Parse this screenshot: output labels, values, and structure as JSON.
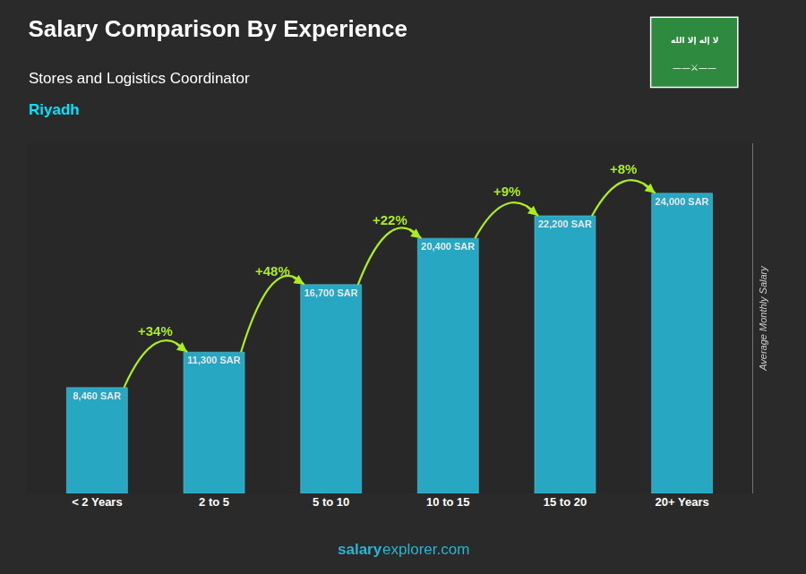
{
  "chart_data": {
    "type": "bar",
    "title": "Salary Comparison By Experience",
    "subtitle": "Stores and Logistics Coordinator",
    "city": "Riyadh",
    "categories": [
      "< 2 Years",
      "2 to 5",
      "5 to 10",
      "10 to 15",
      "15 to 20",
      "20+ Years"
    ],
    "values": [
      8460,
      11300,
      16700,
      20400,
      22200,
      24000
    ],
    "value_labels": [
      "8,460 SAR",
      "11,300 SAR",
      "16,700 SAR",
      "20,400 SAR",
      "22,200 SAR",
      "24,000 SAR"
    ],
    "data_labels": true,
    "annotations": [
      "+34%",
      "+48%",
      "+22%",
      "+9%",
      "+8%"
    ],
    "flag_text": [
      "لا إله إلا الله",
      "——⚔——"
    ],
    "watermark": [
      "salary",
      "explorer.com"
    ],
    "ylabel": "Average Monthly Salary",
    "ylim": [
      0,
      28000
    ],
    "tick_labels": "x",
    "grid": false,
    "color": "#29b6d4"
  }
}
